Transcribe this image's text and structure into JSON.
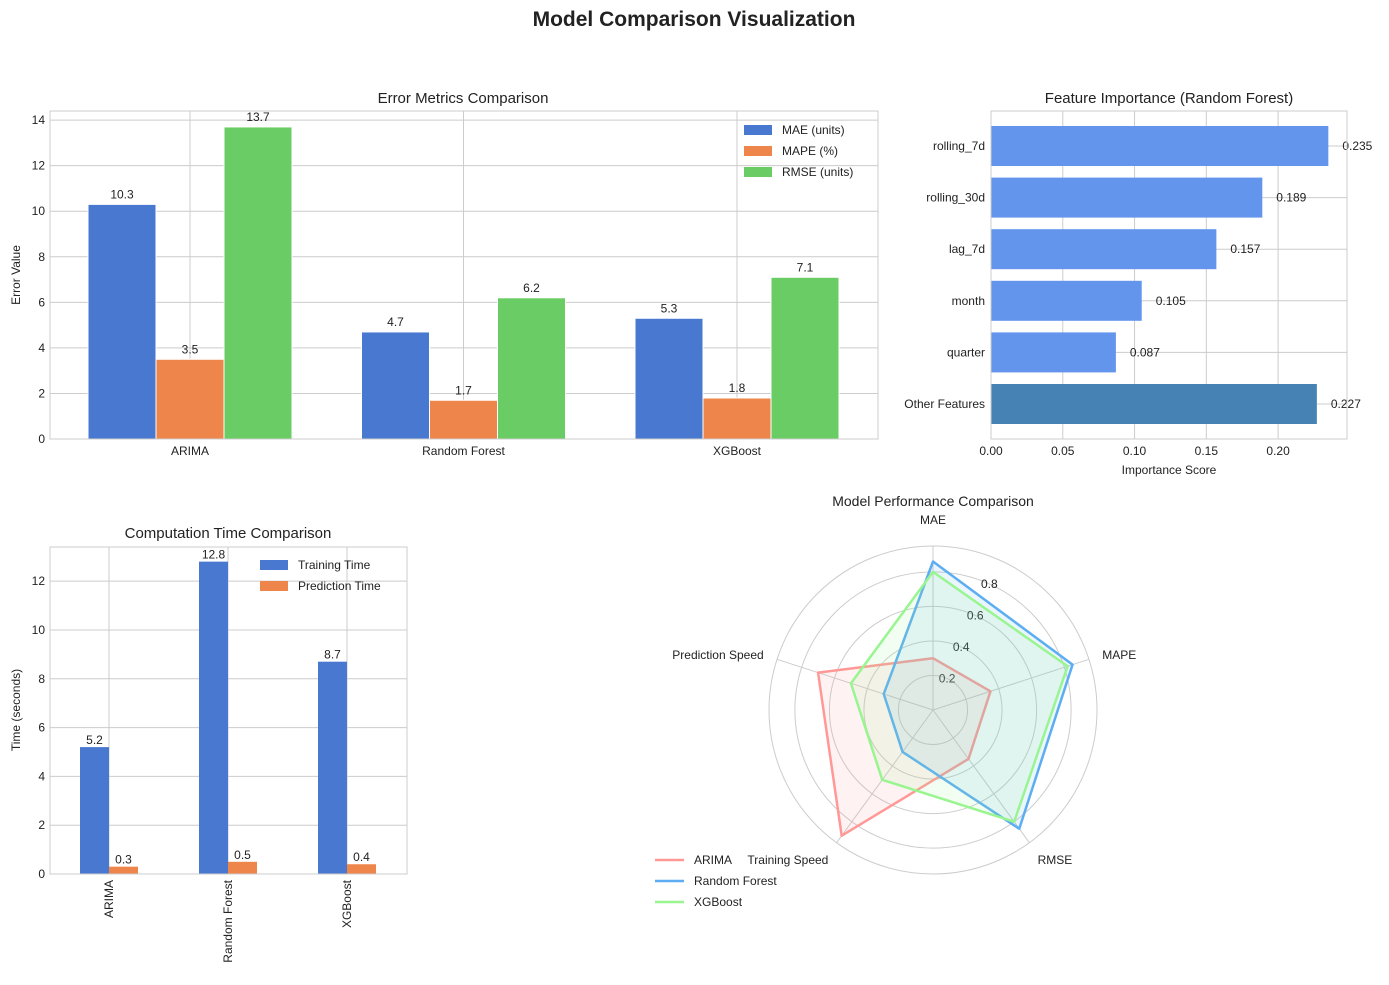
{
  "figure": {
    "title": "Model Comparison Visualization"
  },
  "chart_data": [
    {
      "id": "error",
      "type": "bar",
      "title": "Error Metrics Comparison",
      "xlabel": "",
      "ylabel": "Error Value",
      "categories": [
        "ARIMA",
        "Random Forest",
        "XGBoost"
      ],
      "series": [
        {
          "name": "MAE (units)",
          "values": [
            10.3,
            4.7,
            5.3
          ],
          "color": "#4878d0"
        },
        {
          "name": "MAPE (%)",
          "values": [
            3.5,
            1.7,
            1.8
          ],
          "color": "#ee854a"
        },
        {
          "name": "RMSE (units)",
          "values": [
            13.7,
            6.2,
            7.1
          ],
          "color": "#6acc64"
        }
      ],
      "ylim": [
        0,
        14.4
      ],
      "yticks": [
        0,
        2,
        4,
        6,
        8,
        10,
        12,
        14
      ],
      "legend": "top-right",
      "grid": true
    },
    {
      "id": "importance",
      "type": "barh",
      "title": "Feature Importance (Random Forest)",
      "xlabel": "Importance Score",
      "ylabel": "",
      "categories": [
        "rolling_7d",
        "rolling_30d",
        "lag_7d",
        "month",
        "quarter",
        "Other Features"
      ],
      "values": [
        0.235,
        0.189,
        0.157,
        0.105,
        0.087,
        0.227
      ],
      "value_labels": [
        "0.235",
        "0.189",
        "0.157",
        "0.105",
        "0.087",
        "0.227"
      ],
      "colors": [
        "#6495ed",
        "#6495ed",
        "#6495ed",
        "#6495ed",
        "#6495ed",
        "#4682b4"
      ],
      "xlim": [
        0,
        0.248
      ],
      "xticks": [
        0,
        0.05,
        0.1,
        0.15,
        0.2
      ],
      "xtick_labels": [
        "0.00",
        "0.05",
        "0.10",
        "0.15",
        "0.20"
      ],
      "grid": true
    },
    {
      "id": "time",
      "type": "bar",
      "title": "Computation Time Comparison",
      "xlabel": "",
      "ylabel": "Time (seconds)",
      "categories": [
        "ARIMA",
        "Random Forest",
        "XGBoost"
      ],
      "series": [
        {
          "name": "Training Time",
          "values": [
            5.2,
            12.8,
            8.7
          ],
          "color": "#4878d0"
        },
        {
          "name": "Prediction Time",
          "values": [
            0.3,
            0.5,
            0.4
          ],
          "color": "#ee854a"
        }
      ],
      "ylim": [
        0,
        13.4
      ],
      "yticks": [
        0,
        2,
        4,
        6,
        8,
        10,
        12
      ],
      "legend": "top-right",
      "grid": true
    },
    {
      "id": "radar",
      "type": "radar",
      "title": "Model Performance Comparison",
      "axes": [
        "MAE",
        "MAPE",
        "RMSE",
        "Training Speed",
        "Prediction Speed"
      ],
      "rmax": 0.95,
      "rticks": [
        0.2,
        0.4,
        0.6,
        0.8
      ],
      "series": [
        {
          "name": "ARIMA",
          "values": [
            0.3,
            0.35,
            0.35,
            0.9,
            0.7
          ],
          "color": "#ff9896"
        },
        {
          "name": "Random Forest",
          "values": [
            0.86,
            0.85,
            0.85,
            0.3,
            0.3
          ],
          "color": "#5dadf2"
        },
        {
          "name": "XGBoost",
          "values": [
            0.8,
            0.82,
            0.8,
            0.5,
            0.5
          ],
          "color": "#98f590"
        }
      ],
      "legend": "lower-left",
      "grid": true
    }
  ]
}
